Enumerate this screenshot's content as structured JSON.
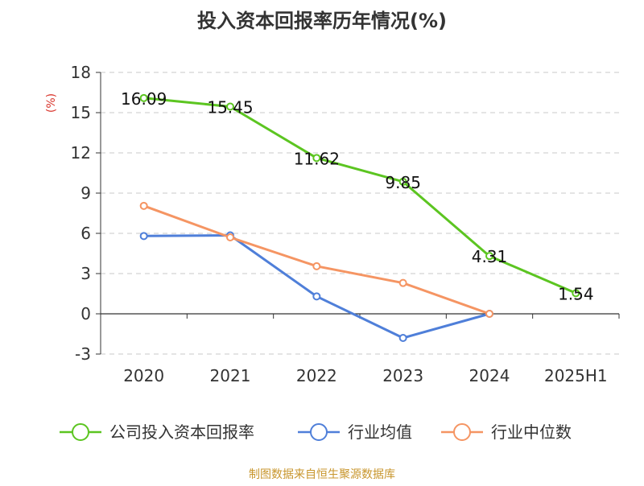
{
  "chart_data": {
    "type": "line",
    "title": "投入资本回报率历年情况(%)",
    "ylabel": "(%)",
    "xlabel": "",
    "categories": [
      "2020",
      "2021",
      "2022",
      "2023",
      "2024",
      "2025H1"
    ],
    "ylim": [
      -3,
      18
    ],
    "yticks": [
      -3,
      0,
      3,
      6,
      9,
      12,
      15,
      18
    ],
    "grid": true,
    "legend_position": "bottom",
    "series": [
      {
        "name": "公司投入资本回报率",
        "color": "#5cc521",
        "values": [
          16.09,
          15.45,
          11.62,
          9.85,
          4.31,
          1.54
        ],
        "labels": [
          "16.09",
          "15.45",
          "11.62",
          "9.85",
          "4.31",
          "1.54"
        ]
      },
      {
        "name": "行业均值",
        "color": "#4f7fd9",
        "values": [
          5.8,
          5.85,
          1.3,
          -1.8,
          0.0,
          null
        ]
      },
      {
        "name": "行业中位数",
        "color": "#f59563",
        "values": [
          8.05,
          5.7,
          3.55,
          2.3,
          0.0,
          null
        ]
      }
    ],
    "source": "制图数据来自恒生聚源数据库"
  }
}
